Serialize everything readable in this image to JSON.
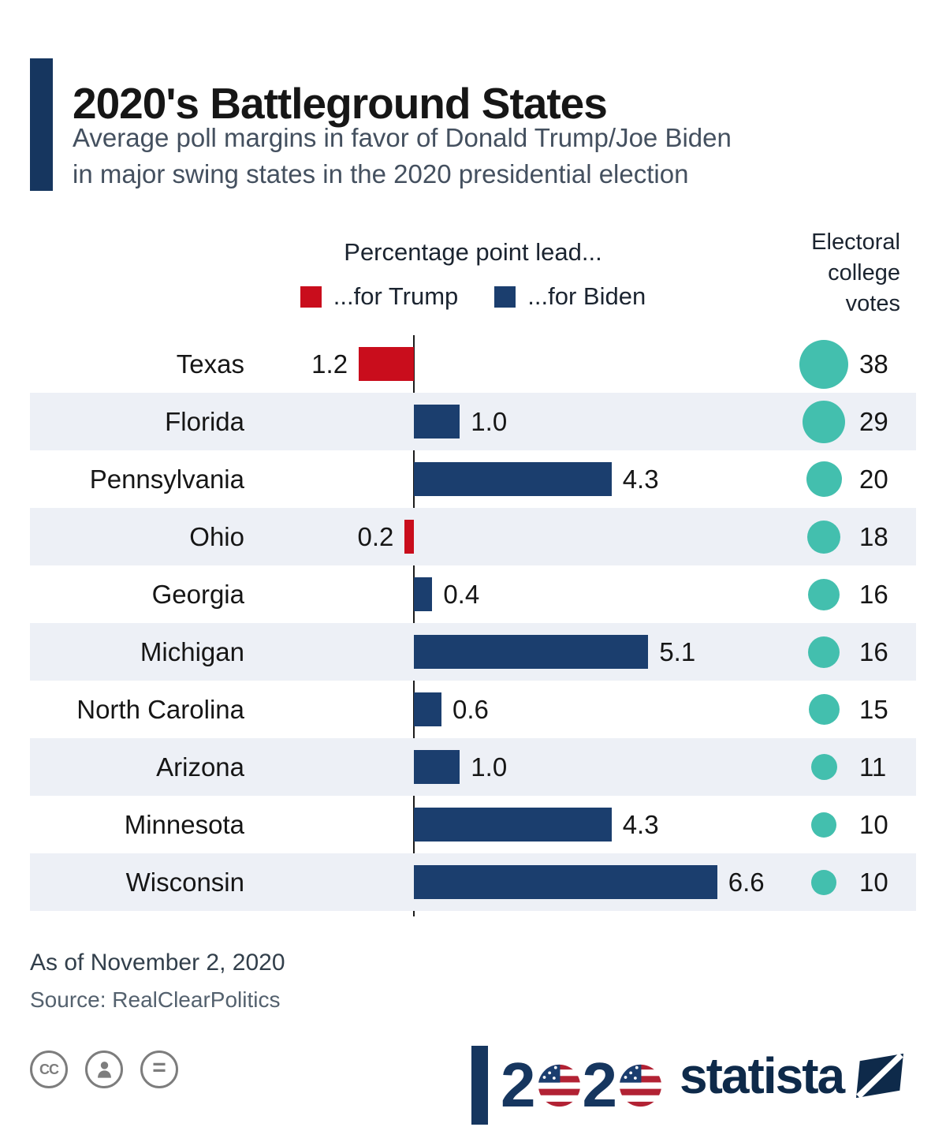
{
  "header": {
    "title": "2020's Battleground States",
    "subtitle_line1": "Average poll margins in favor of Donald Trump/Joe Biden",
    "subtitle_line2": "in major swing states in the 2020 presidential election"
  },
  "legend": {
    "title": "Percentage point lead...",
    "trump_label": "...for Trump",
    "biden_label": "...for Biden"
  },
  "electoral_header": "Electoral college votes",
  "chart_data": {
    "type": "bar",
    "orientation": "horizontal-diverging",
    "title": "2020's Battleground States",
    "value_unit": "percentage point lead",
    "axis_note": "Trump lead drawn left of axis, Biden lead drawn right",
    "rows": [
      {
        "state": "Texas",
        "lead": 1.2,
        "leader": "Trump",
        "electoral_votes": 38
      },
      {
        "state": "Florida",
        "lead": 1.0,
        "leader": "Biden",
        "electoral_votes": 29
      },
      {
        "state": "Pennsylvania",
        "lead": 4.3,
        "leader": "Biden",
        "electoral_votes": 20
      },
      {
        "state": "Ohio",
        "lead": 0.2,
        "leader": "Trump",
        "electoral_votes": 18
      },
      {
        "state": "Georgia",
        "lead": 0.4,
        "leader": "Biden",
        "electoral_votes": 16
      },
      {
        "state": "Michigan",
        "lead": 5.1,
        "leader": "Biden",
        "electoral_votes": 16
      },
      {
        "state": "North Carolina",
        "lead": 0.6,
        "leader": "Biden",
        "electoral_votes": 15
      },
      {
        "state": "Arizona",
        "lead": 1.0,
        "leader": "Biden",
        "electoral_votes": 11
      },
      {
        "state": "Minnesota",
        "lead": 4.3,
        "leader": "Biden",
        "electoral_votes": 10
      },
      {
        "state": "Wisconsin",
        "lead": 6.6,
        "leader": "Biden",
        "electoral_votes": 10
      }
    ]
  },
  "footer": {
    "as_of": "As of November 2, 2020",
    "source": "Source: RealClearPolitics",
    "license": {
      "cc_text": "CC",
      "nd_text": "="
    }
  },
  "branding": {
    "year": "2020",
    "statista": "statista"
  },
  "colors": {
    "trump_red": "#c90d1c",
    "biden_blue": "#1b3e6e",
    "teal": "#43bfae",
    "row_alt": "#edf0f6",
    "accent_navy": "#16365f"
  }
}
